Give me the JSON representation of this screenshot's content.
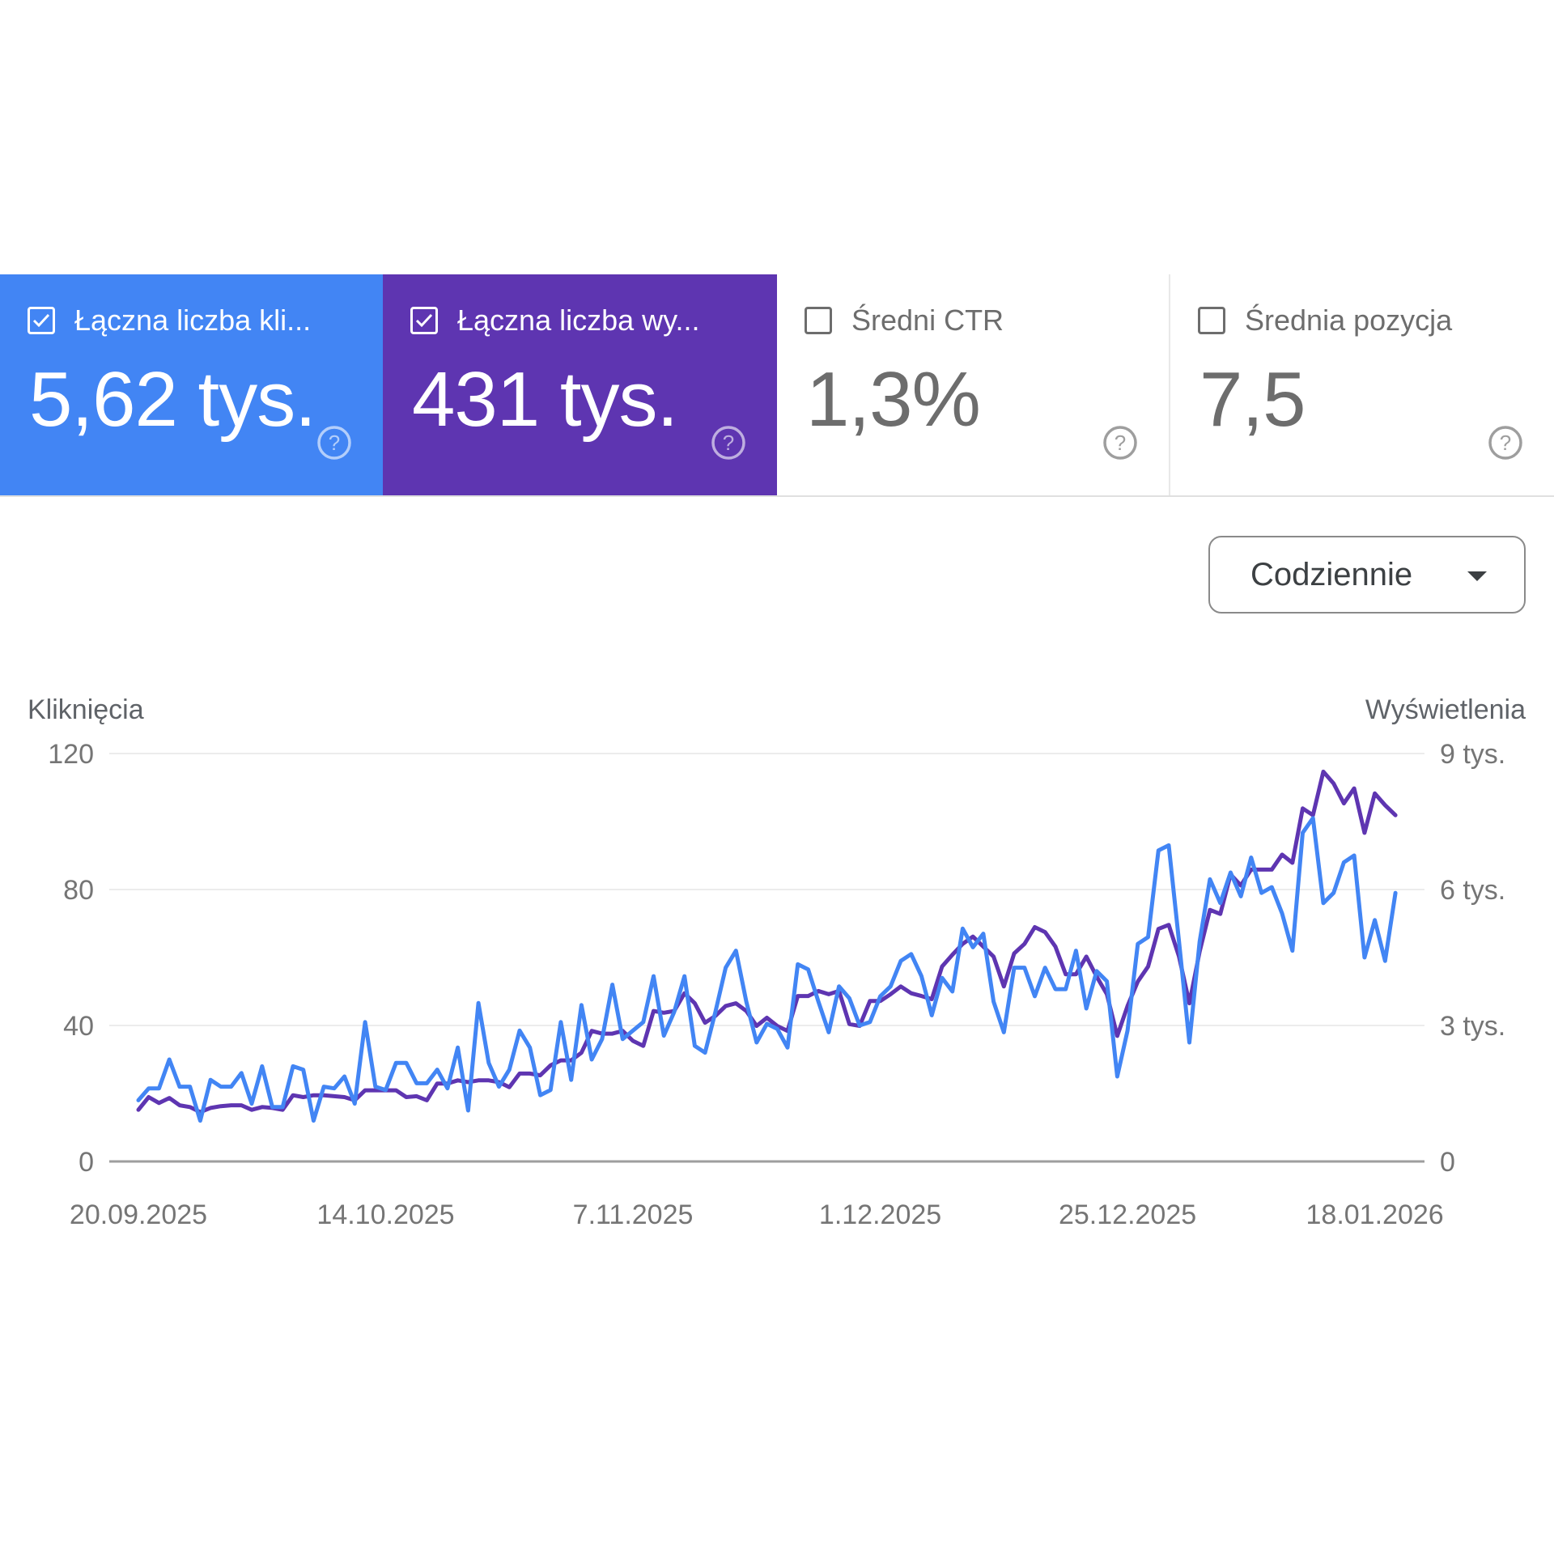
{
  "metrics": [
    {
      "label": "Łączna liczba kli...",
      "value": "5,62 tys.",
      "checked": true,
      "color": "#4285f4",
      "help_icon": "help-circle-icon"
    },
    {
      "label": "Łączna liczba wy...",
      "value": "431 tys.",
      "checked": true,
      "color": "#5e35b1",
      "help_icon": "help-circle-icon"
    },
    {
      "label": "Średni CTR",
      "value": "1,3%",
      "checked": false,
      "help_icon": "help-circle-icon"
    },
    {
      "label": "Średnia pozycja",
      "value": "7,5",
      "checked": false,
      "help_icon": "help-circle-icon"
    }
  ],
  "granularity": {
    "selected": "Codziennie",
    "icon": "caret-down-icon"
  },
  "chart_data": {
    "type": "line",
    "y_left_label": "Kliknięcia",
    "y_right_label": "Wyświetlenia",
    "y_left_ticks": [
      "0",
      "40",
      "80",
      "120"
    ],
    "y_left_range": [
      0,
      120
    ],
    "y_right_ticks": [
      "0",
      "3 tys.",
      "6 tys.",
      "9 tys."
    ],
    "y_right_range": [
      0,
      9000
    ],
    "grid": true,
    "x_ticks": [
      "20.09.2025",
      "14.10.2025",
      "7.11.2025",
      "1.12.2025",
      "25.12.2025",
      "18.01.2026"
    ],
    "x": [
      "20.09.2025",
      "21.09.2025",
      "22.09.2025",
      "23.09.2025",
      "24.09.2025",
      "25.09.2025",
      "26.09.2025",
      "27.09.2025",
      "28.09.2025",
      "29.09.2025",
      "30.09.2025",
      "1.10.2025",
      "2.10.2025",
      "3.10.2025",
      "4.10.2025",
      "5.10.2025",
      "6.10.2025",
      "7.10.2025",
      "8.10.2025",
      "9.10.2025",
      "10.10.2025",
      "11.10.2025",
      "12.10.2025",
      "13.10.2025",
      "14.10.2025",
      "15.10.2025",
      "16.10.2025",
      "17.10.2025",
      "18.10.2025",
      "19.10.2025",
      "20.10.2025",
      "21.10.2025",
      "22.10.2025",
      "23.10.2025",
      "24.10.2025",
      "25.10.2025",
      "26.10.2025",
      "27.10.2025",
      "28.10.2025",
      "29.10.2025",
      "30.10.2025",
      "31.10.2025",
      "1.11.2025",
      "2.11.2025",
      "3.11.2025",
      "4.11.2025",
      "5.11.2025",
      "6.11.2025",
      "7.11.2025",
      "8.11.2025",
      "9.11.2025",
      "10.11.2025",
      "11.11.2025",
      "12.11.2025",
      "13.11.2025",
      "14.11.2025",
      "15.11.2025",
      "16.11.2025",
      "17.11.2025",
      "18.11.2025",
      "19.11.2025",
      "20.11.2025",
      "21.11.2025",
      "22.11.2025",
      "23.11.2025",
      "24.11.2025",
      "25.11.2025",
      "26.11.2025",
      "27.11.2025",
      "28.11.2025",
      "29.11.2025",
      "30.11.2025",
      "1.12.2025",
      "2.12.2025",
      "3.12.2025",
      "4.12.2025",
      "5.12.2025",
      "6.12.2025",
      "7.12.2025",
      "8.12.2025",
      "9.12.2025",
      "10.12.2025",
      "11.12.2025",
      "12.12.2025",
      "13.12.2025",
      "14.12.2025",
      "15.12.2025",
      "16.12.2025",
      "17.12.2025",
      "18.12.2025",
      "19.12.2025",
      "20.12.2025",
      "21.12.2025",
      "22.12.2025",
      "23.12.2025",
      "24.12.2025",
      "25.12.2025",
      "26.12.2025",
      "27.12.2025",
      "28.12.2025",
      "29.12.2025",
      "30.12.2025",
      "31.12.2025",
      "1.01.2026",
      "2.01.2026",
      "3.01.2026",
      "4.01.2026",
      "5.01.2026",
      "6.01.2026",
      "7.01.2026",
      "8.01.2026",
      "9.01.2026",
      "10.01.2026",
      "11.01.2026",
      "12.01.2026",
      "13.01.2026",
      "14.01.2026",
      "15.01.2026",
      "16.01.2026",
      "17.01.2026",
      "18.01.2026",
      "19.01.2026",
      "20.01.2026"
    ],
    "series": [
      {
        "axis": "left",
        "color": "#4285f4",
        "values": [
          18,
          21.5,
          21.5,
          30,
          22,
          22,
          12,
          24,
          22,
          22,
          26,
          17,
          28,
          16,
          16,
          28,
          27,
          12,
          22,
          21.5,
          25,
          17,
          41,
          22,
          21,
          29,
          29,
          23,
          23,
          27,
          21.5,
          33.5,
          15,
          46.6,
          29,
          22,
          27,
          38.5,
          33.5,
          19.5,
          21,
          41,
          24,
          46,
          30,
          36,
          52,
          36,
          38.5,
          41,
          54.5,
          37,
          44,
          54.5,
          34,
          32,
          44,
          57,
          62,
          47,
          35,
          40.5,
          39,
          33.5,
          58,
          56.5,
          47,
          38,
          51.5,
          48,
          40,
          41,
          48.6,
          51.5,
          59,
          61,
          54.5,
          43,
          54,
          50,
          68.5,
          63,
          67,
          47,
          38,
          57,
          57,
          48.6,
          57,
          50.7,
          50.7,
          62,
          45,
          56,
          53,
          25,
          38.5,
          64,
          66,
          91.5,
          93,
          64.7,
          35,
          64.7,
          83,
          76,
          85,
          78,
          89.4,
          79,
          80.7,
          73,
          62,
          96.7,
          101,
          76,
          79,
          88,
          90,
          60,
          71,
          59,
          79
        ]
      },
      {
        "axis": "right",
        "color": "#5e35b1",
        "values": [
          1140,
          1420,
          1290,
          1400,
          1240,
          1200,
          1090,
          1180,
          1220,
          1240,
          1240,
          1140,
          1200,
          1180,
          1140,
          1460,
          1420,
          1460,
          1460,
          1440,
          1420,
          1350,
          1570,
          1570,
          1570,
          1570,
          1420,
          1440,
          1350,
          1720,
          1720,
          1790,
          1750,
          1790,
          1790,
          1750,
          1640,
          1940,
          1940,
          1900,
          2120,
          2230,
          2230,
          2400,
          2880,
          2820,
          2820,
          2880,
          2660,
          2550,
          3320,
          3280,
          3320,
          3710,
          3490,
          3060,
          3210,
          3430,
          3490,
          3320,
          2990,
          3170,
          2990,
          2880,
          3650,
          3650,
          3760,
          3690,
          3760,
          3030,
          2990,
          3540,
          3540,
          3690,
          3860,
          3710,
          3650,
          3580,
          4300,
          4560,
          4800,
          4960,
          4740,
          4520,
          3860,
          4590,
          4800,
          5170,
          5060,
          4740,
          4130,
          4130,
          4520,
          4080,
          3690,
          2770,
          3430,
          3970,
          4300,
          5130,
          5220,
          4520,
          3490,
          4630,
          5550,
          5460,
          6330,
          6090,
          6440,
          6440,
          6440,
          6770,
          6590,
          7790,
          7640,
          8600,
          8340,
          7900,
          8230,
          7250,
          8120,
          7860,
          7640
        ]
      }
    ]
  }
}
